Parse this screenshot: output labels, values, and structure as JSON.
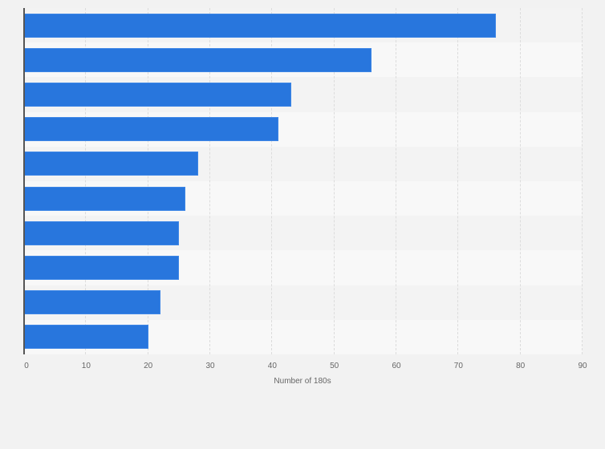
{
  "chart_data": {
    "type": "bar",
    "orientation": "horizontal",
    "title": "",
    "categories": [
      "",
      "",
      "",
      "",
      "",
      "",
      "",
      "",
      "",
      ""
    ],
    "values": [
      76,
      56,
      43,
      41,
      28,
      26,
      25,
      25,
      22,
      20
    ],
    "xlabel": "Number of 180s",
    "ylabel": "",
    "xlim": [
      0,
      90
    ],
    "x_ticks": [
      0,
      10,
      20,
      30,
      40,
      50,
      60,
      70,
      80,
      90
    ],
    "grid": true,
    "legend": null,
    "bar_color": "#2876dd"
  },
  "axis": {
    "x_title": "Number of 180s",
    "ticks": [
      "0",
      "10",
      "20",
      "30",
      "40",
      "50",
      "60",
      "70",
      "80",
      "90"
    ]
  },
  "colors": {
    "bar": "#2876dd",
    "background": "#f2f2f2",
    "band_light": "#f8f8f8",
    "band_dark": "#f3f3f3"
  }
}
